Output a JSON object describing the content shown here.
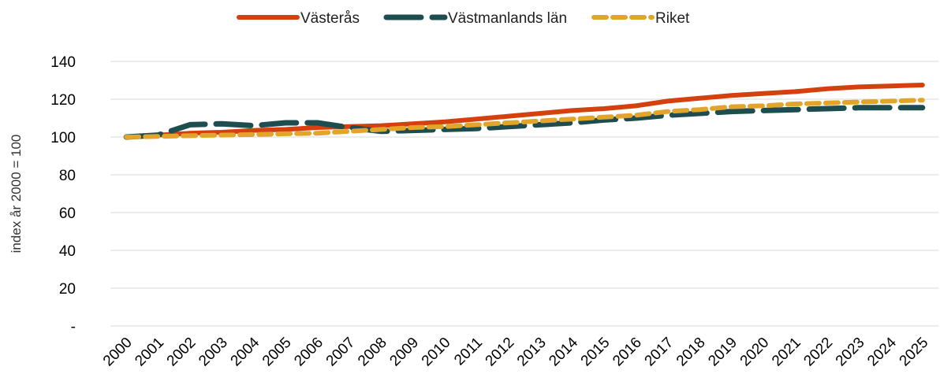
{
  "chart_data": {
    "type": "line",
    "y_label": "index år 2000 = 100",
    "categories": [
      "2000",
      "2001",
      "2002",
      "2003",
      "2004",
      "2005",
      "2006",
      "2007",
      "2008",
      "2009",
      "2010",
      "2011",
      "2012",
      "2013",
      "2014",
      "2015",
      "2016",
      "2017",
      "2018",
      "2019",
      "2020",
      "2021",
      "2022",
      "2023",
      "2024",
      "2025"
    ],
    "series": [
      {
        "name": "Västerås",
        "color": "#d4410f",
        "values": [
          100,
          101,
          102,
          102.5,
          103.5,
          104,
          105,
          105.5,
          106,
          107,
          108,
          109.5,
          111,
          112.5,
          114,
          115,
          116.5,
          119,
          120.5,
          122,
          123,
          124,
          125.5,
          126.5,
          127,
          127.5
        ]
      },
      {
        "name": "Västmanlands län",
        "color": "#1e4d4f",
        "values": [
          100,
          101,
          106.5,
          107,
          106,
          107.5,
          107.5,
          105,
          103,
          103.5,
          104,
          104.5,
          105.5,
          106.5,
          107.5,
          109,
          110,
          111.5,
          112.5,
          113.5,
          114,
          114.5,
          115,
          115.5,
          115.5,
          115.5
        ]
      },
      {
        "name": "Riket",
        "color": "#e2a52a",
        "values": [
          100,
          100.3,
          100.7,
          101,
          101.3,
          101.7,
          102,
          103,
          104,
          105,
          105.5,
          106.5,
          107.5,
          108.5,
          109.5,
          110.5,
          111.5,
          113.5,
          114.5,
          116,
          116.5,
          117.5,
          118,
          118.5,
          119,
          119.5
        ]
      }
    ],
    "ylim": [
      0,
      140
    ],
    "yticks": [
      {
        "value": 0,
        "label": "-"
      },
      20,
      40,
      60,
      80,
      100,
      120,
      140
    ],
    "grid": true
  }
}
